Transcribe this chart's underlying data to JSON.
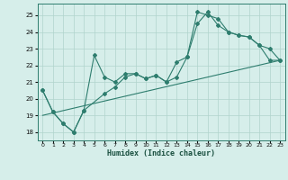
{
  "xlabel": "Humidex (Indice chaleur)",
  "xlim": [
    -0.5,
    23.5
  ],
  "ylim": [
    17.5,
    25.7
  ],
  "xticks": [
    0,
    1,
    2,
    3,
    4,
    5,
    6,
    7,
    8,
    9,
    10,
    11,
    12,
    13,
    14,
    15,
    16,
    17,
    18,
    19,
    20,
    21,
    22,
    23
  ],
  "yticks": [
    18,
    19,
    20,
    21,
    22,
    23,
    24,
    25
  ],
  "bg_color": "#d6eeea",
  "grid_color": "#b0d4cc",
  "line_color": "#2e7d6e",
  "line1_x": [
    0,
    1,
    2,
    3,
    4,
    5,
    6,
    7,
    8,
    9,
    10,
    11,
    12,
    13,
    14,
    15,
    16,
    17,
    18,
    19,
    20,
    21,
    22,
    23
  ],
  "line1_y": [
    20.5,
    19.2,
    18.5,
    18.0,
    19.3,
    22.6,
    21.3,
    21.0,
    21.5,
    21.5,
    21.2,
    21.4,
    21.0,
    22.2,
    22.5,
    25.2,
    25.0,
    24.8,
    24.0,
    23.8,
    23.7,
    23.2,
    22.3,
    22.3
  ],
  "line2_x": [
    0,
    1,
    2,
    3,
    4,
    6,
    7,
    8,
    9,
    10,
    11,
    12,
    13,
    14,
    15,
    16,
    17,
    18,
    19,
    20,
    21,
    22,
    23
  ],
  "line2_y": [
    20.5,
    19.2,
    18.5,
    18.0,
    19.3,
    20.3,
    20.7,
    21.3,
    21.5,
    21.2,
    21.4,
    21.0,
    21.3,
    22.5,
    24.5,
    25.2,
    24.4,
    24.0,
    23.8,
    23.7,
    23.2,
    23.0,
    22.3
  ],
  "line3_x": [
    0,
    23
  ],
  "line3_y": [
    19.0,
    22.3
  ]
}
